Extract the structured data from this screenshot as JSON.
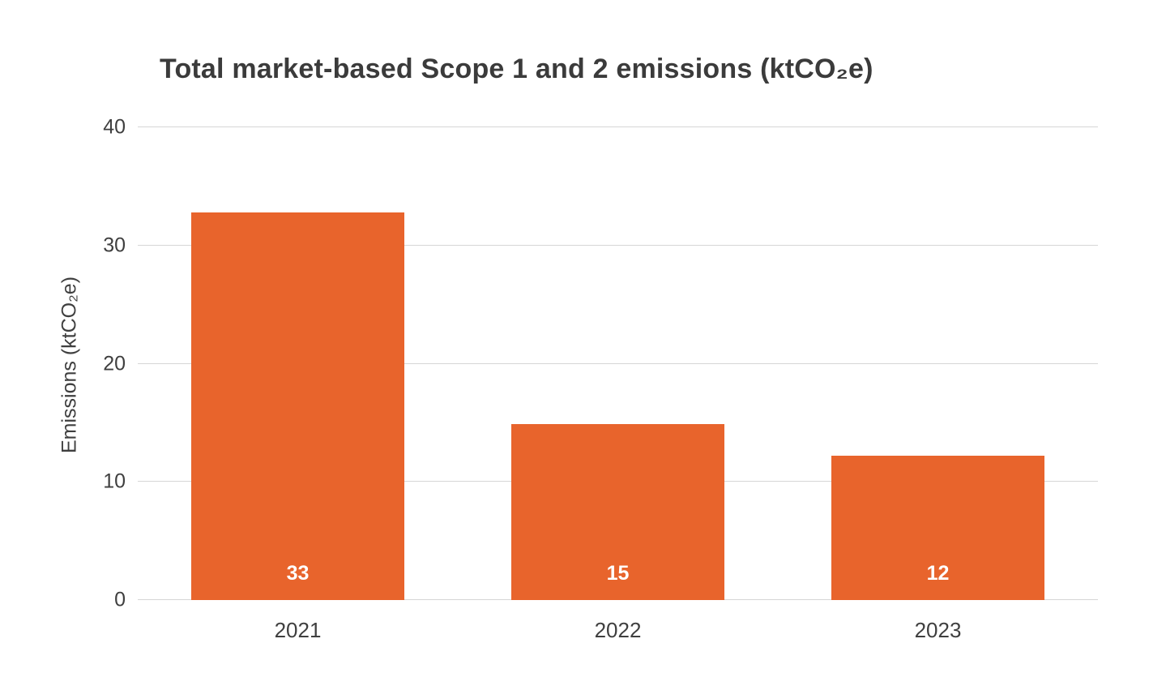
{
  "chart_data": {
    "type": "bar",
    "title": "Total market-based Scope 1 and 2 emissions (ktCO₂e)",
    "ylabel": "Emissions (ktCO₂e)",
    "xlabel": "",
    "categories": [
      "2021",
      "2022",
      "2023"
    ],
    "values": [
      32.8,
      14.9,
      12.2
    ],
    "data_labels": [
      "33",
      "15",
      "12"
    ],
    "ylim": [
      0,
      40
    ],
    "yticks": [
      0,
      10,
      20,
      30,
      40
    ],
    "grid": true,
    "legend": "none",
    "bar_color": "#e8642c",
    "data_label_color": "#ffffff",
    "gridline_color": "#d6d6d6",
    "text_color": "#3f3f3f"
  }
}
